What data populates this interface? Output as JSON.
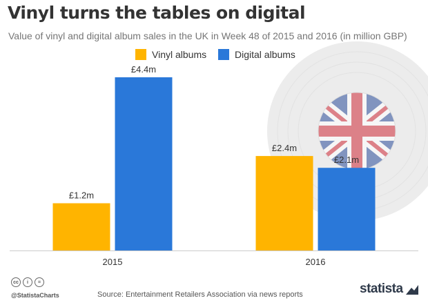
{
  "header": {
    "title": "Vinyl turns the tables on digital",
    "subtitle": "Value of vinyl and digital album sales in the UK in Week 48 of 2015 and 2016 (in million GBP)"
  },
  "colors": {
    "vinyl": "#FFB400",
    "digital": "#2A78D9",
    "axis": "#cccccc",
    "text": "#333333"
  },
  "chart_data": {
    "type": "bar",
    "title": "Vinyl turns the tables on digital",
    "subtitle": "Value of vinyl and digital album sales in the UK in Week 48 of 2015 and 2016 (in million GBP)",
    "categories": [
      "2015",
      "2016"
    ],
    "series": [
      {
        "name": "Vinyl albums",
        "values": [
          1.2,
          2.4
        ],
        "labels": [
          "£1.2m",
          "£2.4m"
        ],
        "color": "#FFB400"
      },
      {
        "name": "Digital albums",
        "values": [
          4.4,
          2.1
        ],
        "labels": [
          "£4.4m",
          "£2.1m"
        ],
        "color": "#2A78D9"
      }
    ],
    "ylim": [
      0,
      4.4
    ],
    "xlabel": "",
    "ylabel": "",
    "grid": false,
    "legend_position": "top-center"
  },
  "decoration": {
    "background_icon": "vinyl-record-with-union-jack-icon"
  },
  "footer": {
    "handle": "@StatistaCharts",
    "source": "Source: Entertainment Retailers Association via news reports",
    "brand": "statista",
    "license_icons": [
      "cc-icon",
      "by-icon",
      "nd-icon"
    ],
    "license_glyphs": [
      "cc",
      "i",
      "="
    ]
  }
}
